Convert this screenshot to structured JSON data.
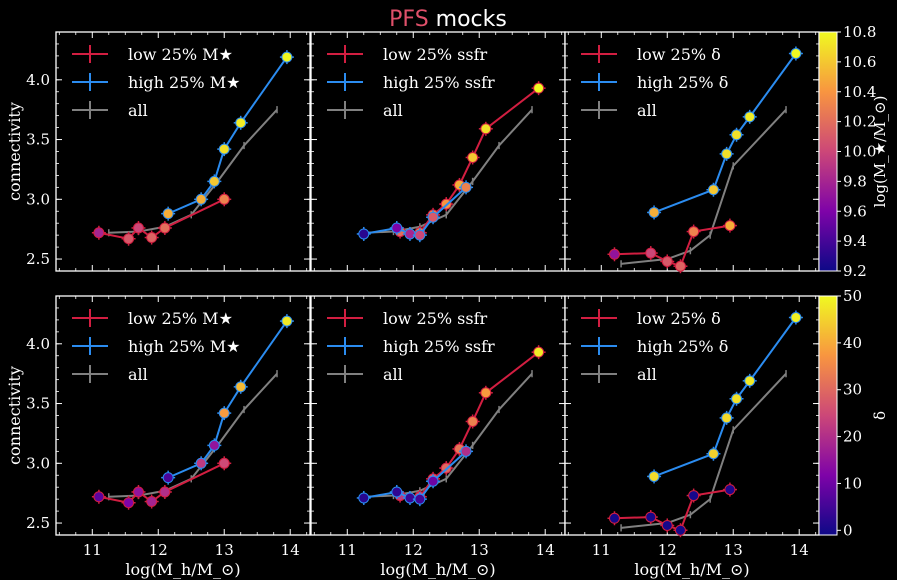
{
  "title": {
    "part1": "PFS",
    "part2": " mocks",
    "color1": "#e0506a"
  },
  "colors": {
    "low": "#d21e41",
    "high": "#2b8cf0",
    "all": "#808080"
  },
  "shared": {
    "xlim": [
      10.45,
      14.3
    ],
    "ylim": [
      2.4,
      4.4
    ],
    "xticks": [
      11,
      12,
      13,
      14
    ],
    "yticks": [
      2.5,
      3.0,
      3.5,
      4.0
    ]
  },
  "axis_labels": {
    "ylabel": "connectivity",
    "xlabel": "log(M_h/M_⊙)"
  },
  "colorbars": [
    {
      "label": "log(M_★/M_⊙)",
      "min": 9.2,
      "max": 10.8,
      "ticks": [
        "9.2",
        "9.4",
        "9.6",
        "9.8",
        "10.0",
        "10.2",
        "10.4",
        "10.6",
        "10.8"
      ]
    },
    {
      "label": "δ",
      "min": -1,
      "max": 50,
      "ticks": [
        "0",
        "10",
        "20",
        "30",
        "40",
        "50"
      ]
    }
  ],
  "chart_data": [
    {
      "type": "line",
      "row": 0,
      "col": 0,
      "cbar": 0,
      "legend": [
        "low 25% M★",
        "high 25% M★",
        "all"
      ],
      "series": [
        {
          "key": "all",
          "x": [
            11.25,
            11.7,
            12.1,
            12.5,
            12.9,
            13.3,
            13.8
          ],
          "y": [
            2.72,
            2.73,
            2.77,
            2.87,
            3.15,
            3.45,
            3.75
          ],
          "err": 0.03
        },
        {
          "key": "low",
          "x": [
            11.1,
            11.55,
            11.7,
            11.9,
            12.1,
            13.0
          ],
          "y": [
            2.72,
            2.67,
            2.76,
            2.68,
            2.76,
            3.0
          ],
          "c": [
            9.8,
            10.1,
            10.0,
            10.15,
            10.2,
            10.3
          ]
        },
        {
          "key": "high",
          "x": [
            12.15,
            12.65,
            12.85,
            13.0,
            13.25,
            13.95
          ],
          "y": [
            2.88,
            3.0,
            3.15,
            3.42,
            3.64,
            4.19
          ],
          "c": [
            10.5,
            10.5,
            10.6,
            10.7,
            10.75,
            10.8
          ]
        }
      ]
    },
    {
      "type": "line",
      "row": 0,
      "col": 1,
      "cbar": 0,
      "legend": [
        "low 25% ssfr",
        "high 25% ssfr",
        "all"
      ],
      "series": [
        {
          "key": "all",
          "x": [
            11.25,
            11.7,
            12.1,
            12.5,
            12.9,
            13.3,
            13.8
          ],
          "y": [
            2.72,
            2.73,
            2.77,
            2.87,
            3.15,
            3.45,
            3.75
          ],
          "err": 0.03
        },
        {
          "key": "low",
          "x": [
            11.8,
            12.1,
            12.3,
            12.5,
            12.7,
            12.9,
            13.1,
            13.9
          ],
          "y": [
            2.73,
            2.72,
            2.87,
            2.96,
            3.12,
            3.35,
            3.59,
            3.93
          ],
          "c": [
            10.2,
            10.3,
            10.35,
            10.4,
            10.5,
            10.6,
            10.7,
            10.8
          ]
        },
        {
          "key": "high",
          "x": [
            11.25,
            11.75,
            11.95,
            12.1,
            12.3,
            12.8
          ],
          "y": [
            2.71,
            2.76,
            2.71,
            2.7,
            2.85,
            3.1
          ],
          "c": [
            9.3,
            9.6,
            9.8,
            10.0,
            10.1,
            10.3
          ]
        }
      ]
    },
    {
      "type": "line",
      "row": 0,
      "col": 2,
      "cbar": 0,
      "legend": [
        "low 25% δ",
        "high 25% δ",
        "all"
      ],
      "series": [
        {
          "key": "all",
          "x": [
            11.3,
            12.0,
            12.35,
            12.65,
            13.0,
            13.8
          ],
          "y": [
            2.46,
            2.5,
            2.57,
            2.7,
            3.28,
            3.75
          ],
          "err": 0.03
        },
        {
          "key": "low",
          "x": [
            11.2,
            11.75,
            12.0,
            12.2,
            12.4,
            12.95
          ],
          "y": [
            2.54,
            2.55,
            2.48,
            2.44,
            2.73,
            2.78
          ],
          "c": [
            9.7,
            10.0,
            10.1,
            10.15,
            10.3,
            10.5
          ]
        },
        {
          "key": "high",
          "x": [
            11.8,
            12.7,
            12.9,
            13.05,
            13.25,
            13.95
          ],
          "y": [
            2.89,
            3.08,
            3.38,
            3.54,
            3.69,
            4.22
          ],
          "c": [
            10.5,
            10.6,
            10.7,
            10.7,
            10.75,
            10.8
          ]
        }
      ]
    },
    {
      "type": "line",
      "row": 1,
      "col": 0,
      "cbar": 1,
      "legend": [
        "low 25% M★",
        "high 25% M★",
        "all"
      ],
      "series": [
        {
          "key": "all",
          "x": [
            11.25,
            11.7,
            12.1,
            12.5,
            12.9,
            13.3,
            13.8
          ],
          "y": [
            2.72,
            2.73,
            2.77,
            2.87,
            3.15,
            3.45,
            3.75
          ],
          "err": 0.03
        },
        {
          "key": "low",
          "x": [
            11.1,
            11.55,
            11.7,
            11.9,
            12.1,
            13.0
          ],
          "y": [
            2.72,
            2.67,
            2.76,
            2.68,
            2.76,
            3.0
          ],
          "c": [
            8,
            12,
            15,
            18,
            20,
            25
          ]
        },
        {
          "key": "high",
          "x": [
            12.15,
            12.65,
            12.85,
            13.0,
            13.25,
            13.95
          ],
          "y": [
            2.88,
            3.0,
            3.15,
            3.42,
            3.64,
            4.19
          ],
          "c": [
            6,
            22,
            15,
            38,
            42,
            48
          ]
        }
      ]
    },
    {
      "type": "line",
      "row": 1,
      "col": 1,
      "cbar": 1,
      "legend": [
        "low 25% ssfr",
        "high 25% ssfr",
        "all"
      ],
      "series": [
        {
          "key": "all",
          "x": [
            11.25,
            11.7,
            12.1,
            12.5,
            12.9,
            13.3,
            13.8
          ],
          "y": [
            2.72,
            2.73,
            2.77,
            2.87,
            3.15,
            3.45,
            3.75
          ],
          "err": 0.03
        },
        {
          "key": "low",
          "x": [
            11.8,
            12.1,
            12.3,
            12.5,
            12.7,
            12.9,
            13.1,
            13.9
          ],
          "y": [
            2.73,
            2.72,
            2.87,
            2.96,
            3.12,
            3.35,
            3.59,
            3.93
          ],
          "c": [
            22,
            25,
            28,
            30,
            32,
            34,
            38,
            48
          ]
        },
        {
          "key": "high",
          "x": [
            11.25,
            11.75,
            11.95,
            12.1,
            12.3,
            12.8
          ],
          "y": [
            2.71,
            2.76,
            2.71,
            2.7,
            2.85,
            3.1
          ],
          "c": [
            2,
            3,
            4,
            5,
            10,
            20
          ]
        }
      ]
    },
    {
      "type": "line",
      "row": 1,
      "col": 2,
      "cbar": 1,
      "legend": [
        "low 25% δ",
        "high 25% δ",
        "all"
      ],
      "series": [
        {
          "key": "all",
          "x": [
            11.3,
            12.0,
            12.35,
            12.65,
            13.0,
            13.8
          ],
          "y": [
            2.46,
            2.5,
            2.57,
            2.7,
            3.28,
            3.75
          ],
          "err": 0.03
        },
        {
          "key": "low",
          "x": [
            11.2,
            11.75,
            12.0,
            12.2,
            12.4,
            12.95
          ],
          "y": [
            2.54,
            2.55,
            2.48,
            2.44,
            2.73,
            2.78
          ],
          "c": [
            0,
            0,
            0,
            0,
            0,
            1
          ]
        },
        {
          "key": "high",
          "x": [
            11.8,
            12.7,
            12.9,
            13.05,
            13.25,
            13.95
          ],
          "y": [
            2.89,
            3.08,
            3.38,
            3.54,
            3.69,
            4.22
          ],
          "c": [
            46,
            45,
            46,
            47,
            48,
            49
          ]
        }
      ]
    }
  ]
}
